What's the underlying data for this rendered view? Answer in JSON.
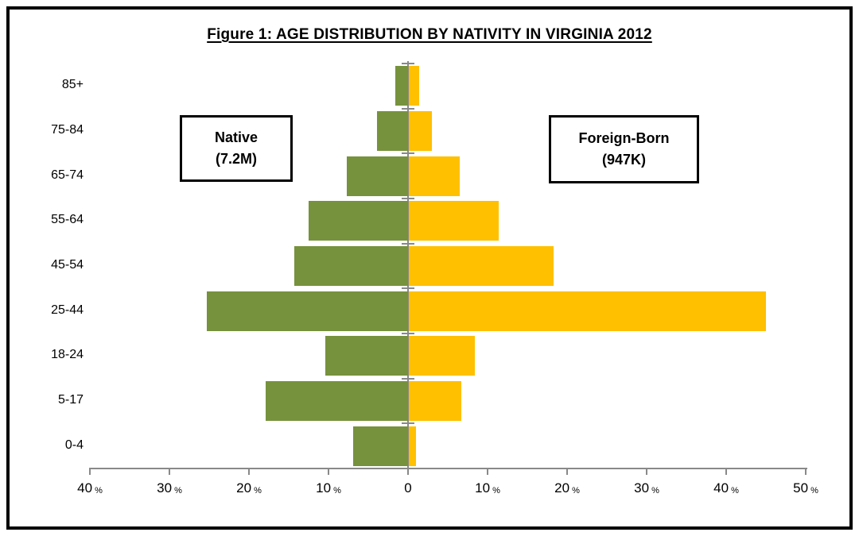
{
  "title": "Figure 1: AGE DISTRIBUTION BY NATIVITY IN VIRGINIA 2012",
  "annotations": {
    "native": {
      "line1": "Native",
      "line2": "(7.2M)"
    },
    "foreign_born": {
      "line1": "Foreign-Born",
      "line2": "(947K)"
    }
  },
  "chart_data": {
    "type": "bar",
    "subtype": "population-pyramid",
    "title": "Figure 1: AGE DISTRIBUTION BY NATIVITY IN VIRGINIA 2012",
    "xlabel": "",
    "ylabel": "",
    "unit": "%",
    "categories": [
      "85+",
      "75-84",
      "65-74",
      "55-64",
      "45-54",
      "25-44",
      "18-24",
      "5-17",
      "0-4"
    ],
    "series": [
      {
        "name": "Native",
        "total": "7.2M",
        "side": "left",
        "color": "#76923C",
        "values": [
          1.6,
          3.9,
          7.7,
          12.5,
          14.3,
          25.3,
          10.4,
          17.9,
          6.9
        ]
      },
      {
        "name": "Foreign-Born",
        "total": "947K",
        "side": "right",
        "color": "#FFC000",
        "values": [
          1.3,
          2.9,
          6.4,
          11.3,
          18.2,
          44.9,
          8.3,
          6.6,
          0.9
        ]
      }
    ],
    "x_axis": {
      "left_max": 40,
      "right_max": 50,
      "tick_step": 10,
      "grid": false,
      "ticks": [
        {
          "value": -40,
          "label": "40",
          "show_pct": true
        },
        {
          "value": -30,
          "label": "30",
          "show_pct": true
        },
        {
          "value": -20,
          "label": "20",
          "show_pct": true
        },
        {
          "value": -10,
          "label": "10",
          "show_pct": true
        },
        {
          "value": 0,
          "label": "0",
          "show_pct": false
        },
        {
          "value": 10,
          "label": "10",
          "show_pct": true
        },
        {
          "value": 20,
          "label": "20",
          "show_pct": true
        },
        {
          "value": 30,
          "label": "30",
          "show_pct": true
        },
        {
          "value": 40,
          "label": "40",
          "show_pct": true
        },
        {
          "value": 50,
          "label": "50",
          "show_pct": true
        }
      ]
    },
    "axis_color": "#898989",
    "legend_position": "inside-boxes"
  }
}
